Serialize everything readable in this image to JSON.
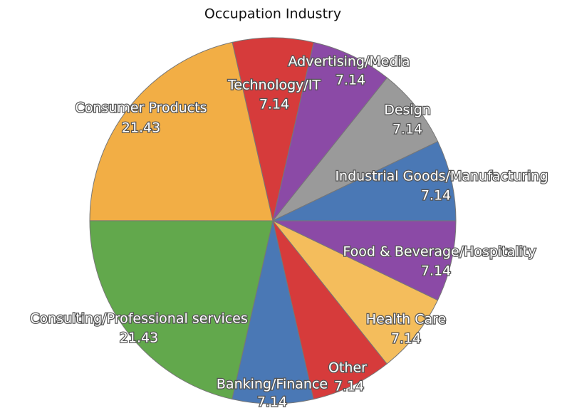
{
  "chart_data": {
    "type": "pie",
    "title": "Occupation Industry",
    "categories": [
      "Technology/IT",
      "Advertising/Media",
      "Design",
      "Industrial Goods/Manufacturing",
      "Food & Beverage/Hospitality",
      "Health Care",
      "Other",
      "Banking/Finance",
      "Consulting/Professional services",
      "Consumer Products"
    ],
    "values": [
      7.14,
      7.14,
      7.14,
      7.14,
      7.14,
      7.14,
      7.14,
      7.14,
      21.43,
      21.43
    ],
    "colors": [
      "#d63b3b",
      "#8b4aa6",
      "#9a9a9a",
      "#4a78b5",
      "#8b4aa6",
      "#f4bd5c",
      "#d63b3b",
      "#4a78b5",
      "#62a84c",
      "#f2ae45"
    ]
  }
}
